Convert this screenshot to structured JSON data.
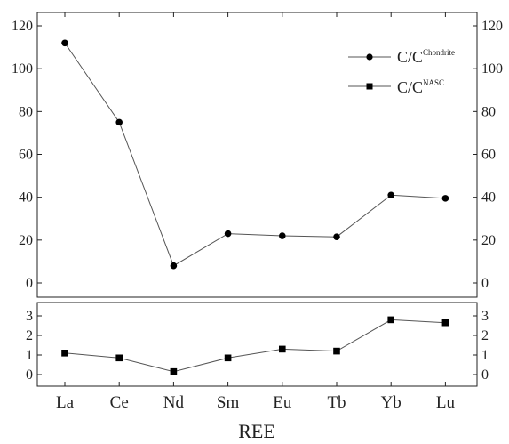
{
  "chart_data": {
    "type": "line",
    "categories": [
      "La",
      "Ce",
      "Nd",
      "Sm",
      "Eu",
      "Tb",
      "Yb",
      "Lu"
    ],
    "xlabel": "REE",
    "panels": [
      {
        "id": "top",
        "ylim": [
          0,
          120
        ],
        "yticks": [
          0,
          20,
          40,
          60,
          80,
          100,
          120
        ],
        "series": [
          {
            "legend_base": "C/C",
            "legend_sup": "Chondrite",
            "marker": "circle",
            "values": [
              112,
              75,
              8,
              23,
              22,
              21.5,
              41,
              39.5
            ]
          }
        ]
      },
      {
        "id": "bottom",
        "ylim": [
          0,
          3
        ],
        "yticks": [
          0,
          1,
          2,
          3
        ],
        "series": [
          {
            "legend_base": "C/C",
            "legend_sup": "NASC",
            "marker": "square",
            "values": [
              1.1,
              0.85,
              0.15,
              0.85,
              1.3,
              1.2,
              2.8,
              2.65
            ]
          }
        ]
      }
    ],
    "legend_position": "top-right",
    "line_color": "#555555",
    "marker_color": "#000000",
    "grid": false
  }
}
